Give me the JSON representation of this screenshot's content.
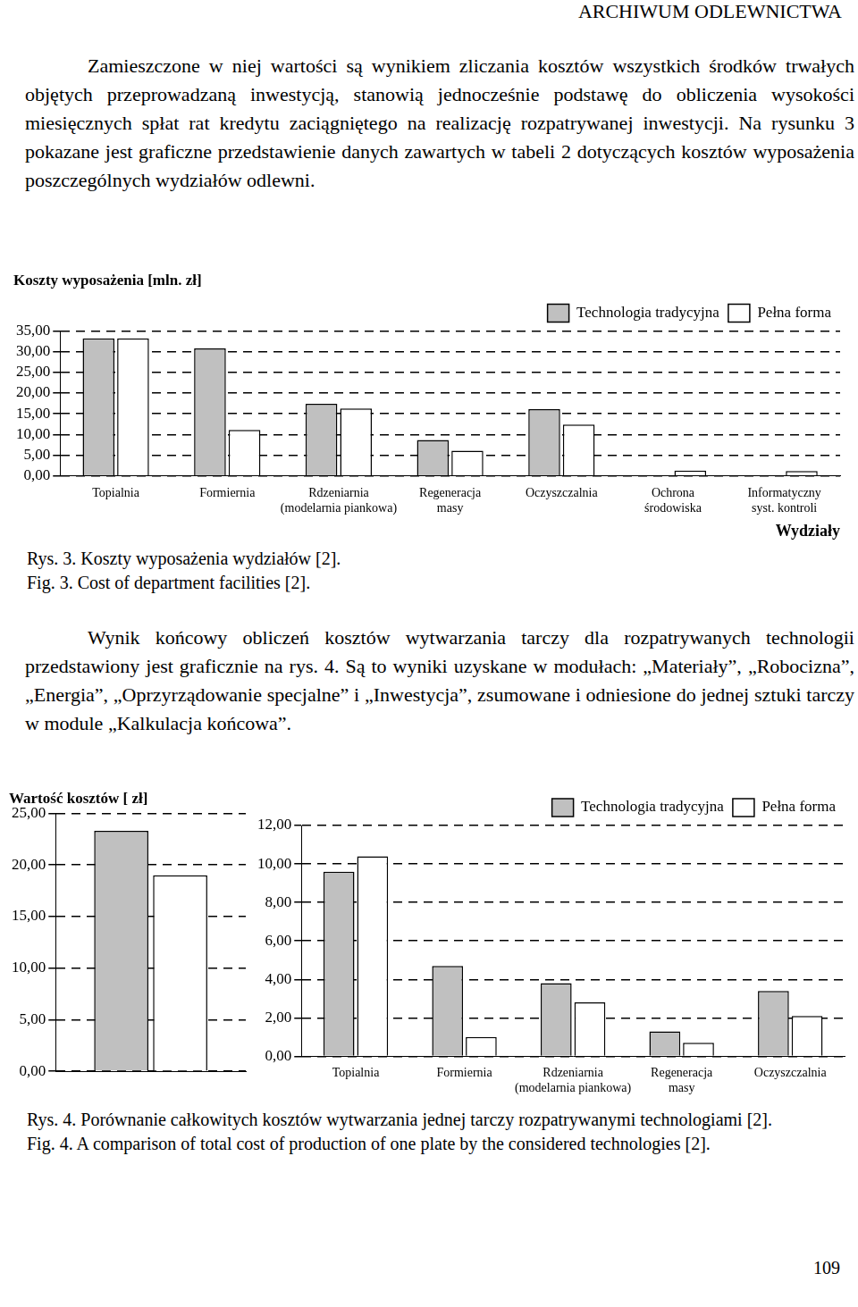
{
  "header": "ARCHIWUM ODLEWNICTWA",
  "paragraphs": [
    "Zamieszczone w niej wartości są wynikiem zliczania kosztów wszystkich środków trwałych objętych przeprowadzaną inwestycją, stanowią jednocześnie podstawę do obliczenia wysokości miesięcznych spłat rat kredytu zaciągniętego na realizację rozpatrywanej inwestycji. Na rysunku 3 pokazane jest graficzne przedstawienie danych zawartych w tabeli 2 dotyczących kosztów wyposażenia poszczególnych wydziałów odlewni.",
    "Wynik końcowy obliczeń kosztów wytwarzania tarczy dla rozpatrywanych technologii przedstawiony jest graficznie na rys. 4. Są to wyniki uzyskane w modułach: „Materiały”, „Robocizna”, „Energia”, „Oprzyrządowanie specjalne” i „Inwestycja”, zsumowane i odniesione do jednej sztuki tarczy w module „Kalkulacja końcowa”."
  ],
  "chart_data": [
    {
      "type": "bar",
      "title": "Koszty wyposażenia [mln. zł]",
      "xlabel": "Wydziały",
      "categories": [
        "Topialnia",
        "Formiernia",
        "Rdzeniarnia\n(modelarnia piankowa)",
        "Regeneracja\nmasy",
        "Oczyszczalnia",
        "Ochrona\nśrodowiska",
        "Informatyczny\nsyst. kontroli"
      ],
      "series": [
        {
          "name": "Technologia tradycyjna",
          "color": "#c0c0c0",
          "values": [
            33.2,
            30.8,
            17.4,
            8.7,
            16.1,
            null,
            null
          ]
        },
        {
          "name": "Pełna forma",
          "color": "#ffffff",
          "values": [
            33.2,
            11.1,
            16.3,
            6.1,
            12.4,
            1.3,
            1.2
          ]
        }
      ],
      "ylim": [
        0,
        35
      ],
      "yticks": [
        {
          "value": 0,
          "label": "0,00"
        },
        {
          "value": 5,
          "label": "5,00"
        },
        {
          "value": 10,
          "label": "10,00"
        },
        {
          "value": 15,
          "label": "15,00"
        },
        {
          "value": 20,
          "label": "20,00"
        },
        {
          "value": 25,
          "label": "25,00"
        },
        {
          "value": 30,
          "label": "30,00"
        },
        {
          "value": 35,
          "label": "35,00"
        }
      ],
      "grid": true,
      "legend": "upper right"
    },
    {
      "type": "bar",
      "title": "Wartość kosztów [ zł]",
      "categories": [
        null
      ],
      "series": [
        {
          "color": "#c0c0c0",
          "values": [
            23.3
          ]
        },
        {
          "color": "#ffffff",
          "values": [
            19.0
          ]
        }
      ],
      "ylim": [
        0,
        25
      ],
      "yticks": [
        {
          "value": 0,
          "label": "0,00"
        },
        {
          "value": 5,
          "label": "5,00"
        },
        {
          "value": 10,
          "label": "10,00"
        },
        {
          "value": 15,
          "label": "15,00"
        },
        {
          "value": 20,
          "label": "20,00"
        },
        {
          "value": 25,
          "label": "25,00"
        }
      ],
      "grid": true
    },
    {
      "type": "bar",
      "categories": [
        "Topialnia",
        "Formiernia",
        "Rdzeniarnia\n(modelarnia piankowa)",
        "Regeneracja\nmasy",
        "Oczyszczalnia"
      ],
      "series": [
        {
          "name": "Technologia tradycyjna",
          "color": "#c0c0c0",
          "values": [
            9.6,
            4.7,
            3.8,
            1.3,
            3.4
          ]
        },
        {
          "name": "Pełna forma",
          "color": "#ffffff",
          "values": [
            10.4,
            1.0,
            2.8,
            0.7,
            2.1
          ]
        }
      ],
      "ylim": [
        0,
        12
      ],
      "yticks": [
        {
          "value": 0,
          "label": "0,00"
        },
        {
          "value": 2,
          "label": "2,00"
        },
        {
          "value": 4,
          "label": "4,00"
        },
        {
          "value": 6,
          "label": "6,00"
        },
        {
          "value": 8,
          "label": "8,00"
        },
        {
          "value": 10,
          "label": "10,00"
        },
        {
          "value": 12,
          "label": "12,00"
        }
      ],
      "grid": true,
      "legend": "upper right"
    }
  ],
  "captions": [
    [
      "Rys. 3. Koszty wyposażenia wydziałów [2].",
      "Fig. 3. Cost of department facilities [2]."
    ],
    [
      "Rys. 4. Porównanie całkowitych kosztów wytwarzania jednej tarczy rozpatrywanymi technologiami [2].",
      "Fig. 4. A comparison of total cost of production of one plate by the considered technologies [2]."
    ]
  ],
  "page_number": "109"
}
